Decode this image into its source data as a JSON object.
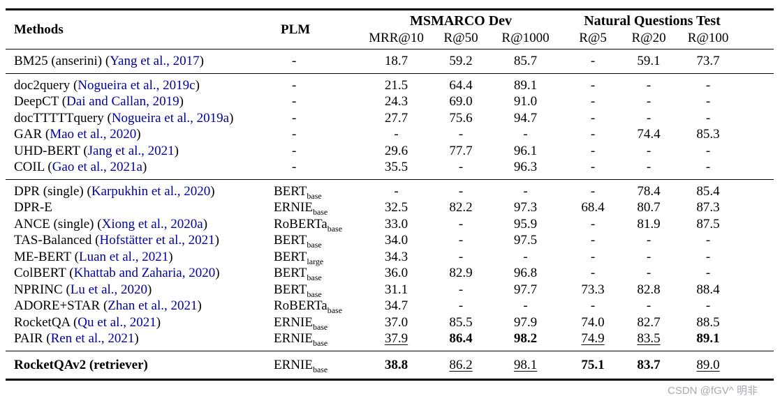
{
  "colors": {
    "citation": "#00009b",
    "text": "#000000",
    "background": "#ffffff",
    "watermark": "#a8a8b0"
  },
  "watermark": {
    "text": "CSDN @fGV^ 明非"
  },
  "table": {
    "header": {
      "methods_label": "Methods",
      "plm_label": "PLM",
      "groups": [
        {
          "label": "MSMARCO Dev",
          "cols": [
            "MRR@10",
            "R@50",
            "R@1000"
          ]
        },
        {
          "label": "Natural Questions Test",
          "cols": [
            "R@5",
            "R@20",
            "R@100"
          ]
        }
      ]
    },
    "sections": [
      {
        "rows": [
          {
            "method": "BM25 (anserini)",
            "citation": "Yang et al., 2017",
            "plm": null,
            "bold": false,
            "values": [
              [
                "18.7",
                ""
              ],
              [
                "59.2",
                ""
              ],
              [
                "85.7",
                ""
              ],
              [
                "-",
                ""
              ],
              [
                "59.1",
                ""
              ],
              [
                "73.7",
                ""
              ]
            ]
          }
        ]
      },
      {
        "rows": [
          {
            "method": "doc2query",
            "citation": "Nogueira et al., 2019c",
            "plm": null,
            "bold": false,
            "values": [
              [
                "21.5",
                ""
              ],
              [
                "64.4",
                ""
              ],
              [
                "89.1",
                ""
              ],
              [
                "-",
                ""
              ],
              [
                "-",
                ""
              ],
              [
                "-",
                ""
              ]
            ]
          },
          {
            "method": "DeepCT",
            "citation": "Dai and Callan, 2019",
            "plm": null,
            "bold": false,
            "values": [
              [
                "24.3",
                ""
              ],
              [
                "69.0",
                ""
              ],
              [
                "91.0",
                ""
              ],
              [
                "-",
                ""
              ],
              [
                "-",
                ""
              ],
              [
                "-",
                ""
              ]
            ]
          },
          {
            "method": "docTTTTTquery",
            "citation": "Nogueira et al., 2019a",
            "plm": null,
            "bold": false,
            "values": [
              [
                "27.7",
                ""
              ],
              [
                "75.6",
                ""
              ],
              [
                "94.7",
                ""
              ],
              [
                "-",
                ""
              ],
              [
                "-",
                ""
              ],
              [
                "-",
                ""
              ]
            ]
          },
          {
            "method": "GAR",
            "citation": "Mao et al., 2020",
            "plm": null,
            "bold": false,
            "values": [
              [
                "-",
                ""
              ],
              [
                "-",
                ""
              ],
              [
                "-",
                ""
              ],
              [
                "-",
                ""
              ],
              [
                "74.4",
                ""
              ],
              [
                "85.3",
                ""
              ]
            ]
          },
          {
            "method": "UHD-BERT",
            "citation": "Jang et al., 2021",
            "plm": null,
            "bold": false,
            "values": [
              [
                "29.6",
                ""
              ],
              [
                "77.7",
                ""
              ],
              [
                "96.1",
                ""
              ],
              [
                "-",
                ""
              ],
              [
                "-",
                ""
              ],
              [
                "-",
                ""
              ]
            ]
          },
          {
            "method": "COIL",
            "citation": "Gao et al., 2021a",
            "plm": null,
            "bold": false,
            "values": [
              [
                "35.5",
                ""
              ],
              [
                "-",
                ""
              ],
              [
                "96.3",
                ""
              ],
              [
                "-",
                ""
              ],
              [
                "-",
                ""
              ],
              [
                "-",
                ""
              ]
            ]
          }
        ]
      },
      {
        "rows": [
          {
            "method": "DPR (single)",
            "citation": "Karpukhin et al., 2020",
            "plm": {
              "base": "BERT",
              "sub": "base"
            },
            "bold": false,
            "values": [
              [
                "-",
                ""
              ],
              [
                "-",
                ""
              ],
              [
                "-",
                ""
              ],
              [
                "-",
                ""
              ],
              [
                "78.4",
                ""
              ],
              [
                "85.4",
                ""
              ]
            ]
          },
          {
            "method": "DPR-E",
            "citation": null,
            "plm": {
              "base": "ERNIE",
              "sub": "base"
            },
            "bold": false,
            "values": [
              [
                "32.5",
                ""
              ],
              [
                "82.2",
                ""
              ],
              [
                "97.3",
                ""
              ],
              [
                "68.4",
                ""
              ],
              [
                "80.7",
                ""
              ],
              [
                "87.3",
                ""
              ]
            ]
          },
          {
            "method": "ANCE (single)",
            "citation": "Xiong et al., 2020a",
            "plm": {
              "base": "RoBERTa",
              "sub": "base"
            },
            "bold": false,
            "values": [
              [
                "33.0",
                ""
              ],
              [
                "-",
                ""
              ],
              [
                "95.9",
                ""
              ],
              [
                "-",
                ""
              ],
              [
                "81.9",
                ""
              ],
              [
                "87.5",
                ""
              ]
            ]
          },
          {
            "method": "TAS-Balanced",
            "citation": "Hofstätter et al., 2021",
            "plm": {
              "base": "BERT",
              "sub": "base"
            },
            "bold": false,
            "values": [
              [
                "34.0",
                ""
              ],
              [
                "-",
                ""
              ],
              [
                "97.5",
                ""
              ],
              [
                "-",
                ""
              ],
              [
                "-",
                ""
              ],
              [
                "-",
                ""
              ]
            ]
          },
          {
            "method": "ME-BERT",
            "citation": "Luan et al., 2021",
            "plm": {
              "base": "BERT",
              "sub": "large"
            },
            "bold": false,
            "values": [
              [
                "34.3",
                ""
              ],
              [
                "-",
                ""
              ],
              [
                "-",
                ""
              ],
              [
                "-",
                ""
              ],
              [
                "-",
                ""
              ],
              [
                "-",
                ""
              ]
            ]
          },
          {
            "method": "ColBERT",
            "citation": "Khattab and Zaharia, 2020",
            "plm": {
              "base": "BERT",
              "sub": "base"
            },
            "bold": false,
            "values": [
              [
                "36.0",
                ""
              ],
              [
                "82.9",
                ""
              ],
              [
                "96.8",
                ""
              ],
              [
                "-",
                ""
              ],
              [
                "-",
                ""
              ],
              [
                "-",
                ""
              ]
            ]
          },
          {
            "method": "NPRINC",
            "citation": "Lu et al., 2020",
            "plm": {
              "base": "BERT",
              "sub": "base"
            },
            "bold": false,
            "values": [
              [
                "31.1",
                ""
              ],
              [
                "-",
                ""
              ],
              [
                "97.7",
                ""
              ],
              [
                "73.3",
                ""
              ],
              [
                "82.8",
                ""
              ],
              [
                "88.4",
                ""
              ]
            ]
          },
          {
            "method": "ADORE+STAR",
            "citation": "Zhan et al., 2021",
            "plm": {
              "base": "RoBERTa",
              "sub": "base"
            },
            "bold": false,
            "values": [
              [
                "34.7",
                ""
              ],
              [
                "-",
                ""
              ],
              [
                "-",
                ""
              ],
              [
                "-",
                ""
              ],
              [
                "-",
                ""
              ],
              [
                "-",
                ""
              ]
            ]
          },
          {
            "method": "RocketQA",
            "citation": "Qu et al., 2021",
            "plm": {
              "base": "ERNIE",
              "sub": "base"
            },
            "bold": false,
            "values": [
              [
                "37.0",
                ""
              ],
              [
                "85.5",
                ""
              ],
              [
                "97.9",
                ""
              ],
              [
                "74.0",
                ""
              ],
              [
                "82.7",
                ""
              ],
              [
                "88.5",
                ""
              ]
            ]
          },
          {
            "method": "PAIR",
            "citation": "Ren et al., 2021",
            "plm": {
              "base": "ERNIE",
              "sub": "base"
            },
            "bold": false,
            "values": [
              [
                "37.9",
                "u"
              ],
              [
                "86.4",
                "b"
              ],
              [
                "98.2",
                "b"
              ],
              [
                "74.9",
                "u"
              ],
              [
                "83.5",
                "u"
              ],
              [
                "89.1",
                "b"
              ]
            ]
          }
        ]
      },
      {
        "final": true,
        "rows": [
          {
            "method": "RocketQAv2 (retriever)",
            "citation": null,
            "plm": {
              "base": "ERNIE",
              "sub": "base"
            },
            "bold": true,
            "values": [
              [
                "38.8",
                "b"
              ],
              [
                "86.2",
                "u"
              ],
              [
                "98.1",
                "u"
              ],
              [
                "75.1",
                "b"
              ],
              [
                "83.7",
                "b"
              ],
              [
                "89.0",
                "u"
              ]
            ]
          }
        ]
      }
    ]
  }
}
